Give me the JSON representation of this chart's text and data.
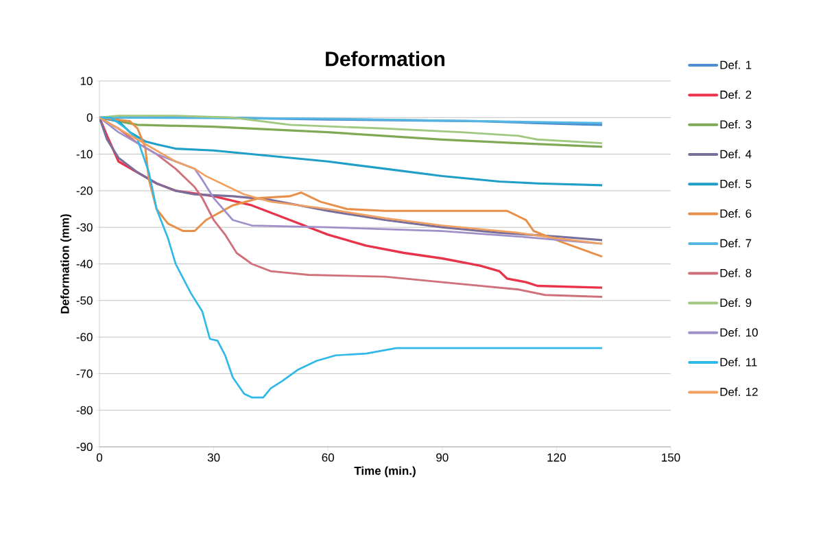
{
  "chart_data": {
    "type": "line",
    "title": "Deformation",
    "xlabel": "Time (min.)",
    "ylabel": "Deformation (mm)",
    "xlim": [
      0,
      150
    ],
    "xticks": [
      0,
      30,
      60,
      90,
      120,
      150
    ],
    "ylim": [
      -90,
      10
    ],
    "yticks": [
      -90,
      -80,
      -70,
      -60,
      -50,
      -40,
      -30,
      -20,
      -10,
      0,
      10
    ],
    "grid": "y",
    "legend": "right",
    "series": [
      {
        "name": "Def. 1",
        "color": "#4a8fd0",
        "x": [
          0,
          30,
          60,
          100,
          115,
          132
        ],
        "values": [
          0,
          0,
          -0.5,
          -1,
          -1.5,
          -2
        ]
      },
      {
        "name": "Def. 2",
        "color": "#e8334a",
        "x": [
          0,
          2,
          5,
          10,
          15,
          20,
          30,
          40,
          50,
          60,
          70,
          80,
          90,
          100,
          105,
          107,
          112,
          115,
          132
        ],
        "values": [
          0,
          -5,
          -12,
          -15,
          -18,
          -20,
          -21.5,
          -24,
          -28,
          -32,
          -35,
          -37,
          -38.5,
          -40.5,
          -42,
          -44,
          -45,
          -46,
          -46.5
        ]
      },
      {
        "name": "Def. 3",
        "color": "#7fa955",
        "x": [
          0,
          5,
          10,
          30,
          60,
          90,
          110,
          132
        ],
        "values": [
          0,
          -1,
          -2,
          -2.5,
          -4,
          -6,
          -7,
          -8
        ]
      },
      {
        "name": "Def. 4",
        "color": "#7a6f9b",
        "x": [
          0,
          2,
          5,
          10,
          15,
          20,
          25,
          35,
          45,
          60,
          75,
          90,
          105,
          120,
          132
        ],
        "values": [
          0,
          -6,
          -11,
          -15,
          -18,
          -20,
          -21,
          -21.5,
          -22.5,
          -25.5,
          -28,
          -30,
          -31.5,
          -32.5,
          -33.5
        ]
      },
      {
        "name": "Def. 5",
        "color": "#1f9fc8",
        "x": [
          0,
          5,
          8,
          12,
          15,
          20,
          30,
          45,
          60,
          75,
          90,
          105,
          115,
          132
        ],
        "values": [
          0,
          -1,
          -4,
          -6.5,
          -7.3,
          -8.5,
          -9,
          -10.5,
          -12,
          -14,
          -16,
          -17.5,
          -18,
          -18.5
        ]
      },
      {
        "name": "Def. 6",
        "color": "#e8904a",
        "x": [
          0,
          8,
          10,
          12,
          13,
          15,
          18,
          22,
          25,
          28,
          35,
          42,
          50,
          53,
          58,
          65,
          75,
          107,
          112,
          114,
          120,
          132
        ],
        "values": [
          0,
          -1,
          -3,
          -8,
          -17,
          -25,
          -29,
          -31,
          -31,
          -28,
          -24,
          -22,
          -21.5,
          -20.5,
          -23,
          -25,
          -25.5,
          -25.5,
          -28,
          -31,
          -33.5,
          -38
        ]
      },
      {
        "name": "Def. 7",
        "color": "#55b5e3",
        "x": [
          0,
          60,
          100,
          132
        ],
        "values": [
          0,
          -0.3,
          -1,
          -1.5
        ]
      },
      {
        "name": "Def. 8",
        "color": "#d0707a",
        "x": [
          0,
          5,
          10,
          15,
          20,
          25,
          27,
          30,
          33,
          36,
          40,
          45,
          55,
          75,
          90,
          110,
          117,
          132
        ],
        "values": [
          0,
          -3,
          -7,
          -10,
          -14,
          -19,
          -22,
          -28,
          -32,
          -37,
          -40,
          -42,
          -43,
          -43.5,
          -45,
          -47,
          -48.5,
          -49
        ]
      },
      {
        "name": "Def. 9",
        "color": "#a0c880",
        "x": [
          0,
          5,
          20,
          35,
          50,
          75,
          95,
          110,
          115,
          132
        ],
        "values": [
          0,
          0.5,
          0.5,
          0,
          -2,
          -3,
          -4,
          -5,
          -6,
          -7
        ]
      },
      {
        "name": "Def. 10",
        "color": "#a090c8",
        "x": [
          0,
          5,
          10,
          15,
          20,
          25,
          27,
          30,
          35,
          40,
          60,
          90,
          110,
          132
        ],
        "values": [
          0,
          -4,
          -7,
          -10,
          -12,
          -14,
          -17,
          -22,
          -28,
          -29.5,
          -30,
          -31,
          -32.5,
          -34.5
        ]
      },
      {
        "name": "Def. 11",
        "color": "#30b8e8",
        "x": [
          0,
          3,
          7,
          10,
          13,
          15,
          18,
          20,
          24,
          27,
          29,
          31,
          33,
          35,
          38,
          40,
          43,
          45,
          48,
          52,
          57,
          62,
          70,
          78,
          90,
          132
        ],
        "values": [
          0,
          0,
          -3,
          -6,
          -15,
          -25,
          -33,
          -40,
          -48,
          -53,
          -60.5,
          -61,
          -65,
          -71,
          -75.5,
          -76.5,
          -76.5,
          -74,
          -72,
          -69,
          -66.5,
          -65,
          -64.5,
          -63,
          -63,
          -63
        ]
      },
      {
        "name": "Def. 12",
        "color": "#f0a060",
        "x": [
          0,
          5,
          10,
          15,
          20,
          25,
          28,
          32,
          38,
          45,
          60,
          75,
          90,
          110,
          120,
          132
        ],
        "values": [
          0,
          -3,
          -6,
          -9,
          -12,
          -14,
          -16,
          -18,
          -21,
          -23,
          -25,
          -27.5,
          -29.5,
          -31.5,
          -33,
          -34.5
        ]
      }
    ]
  }
}
